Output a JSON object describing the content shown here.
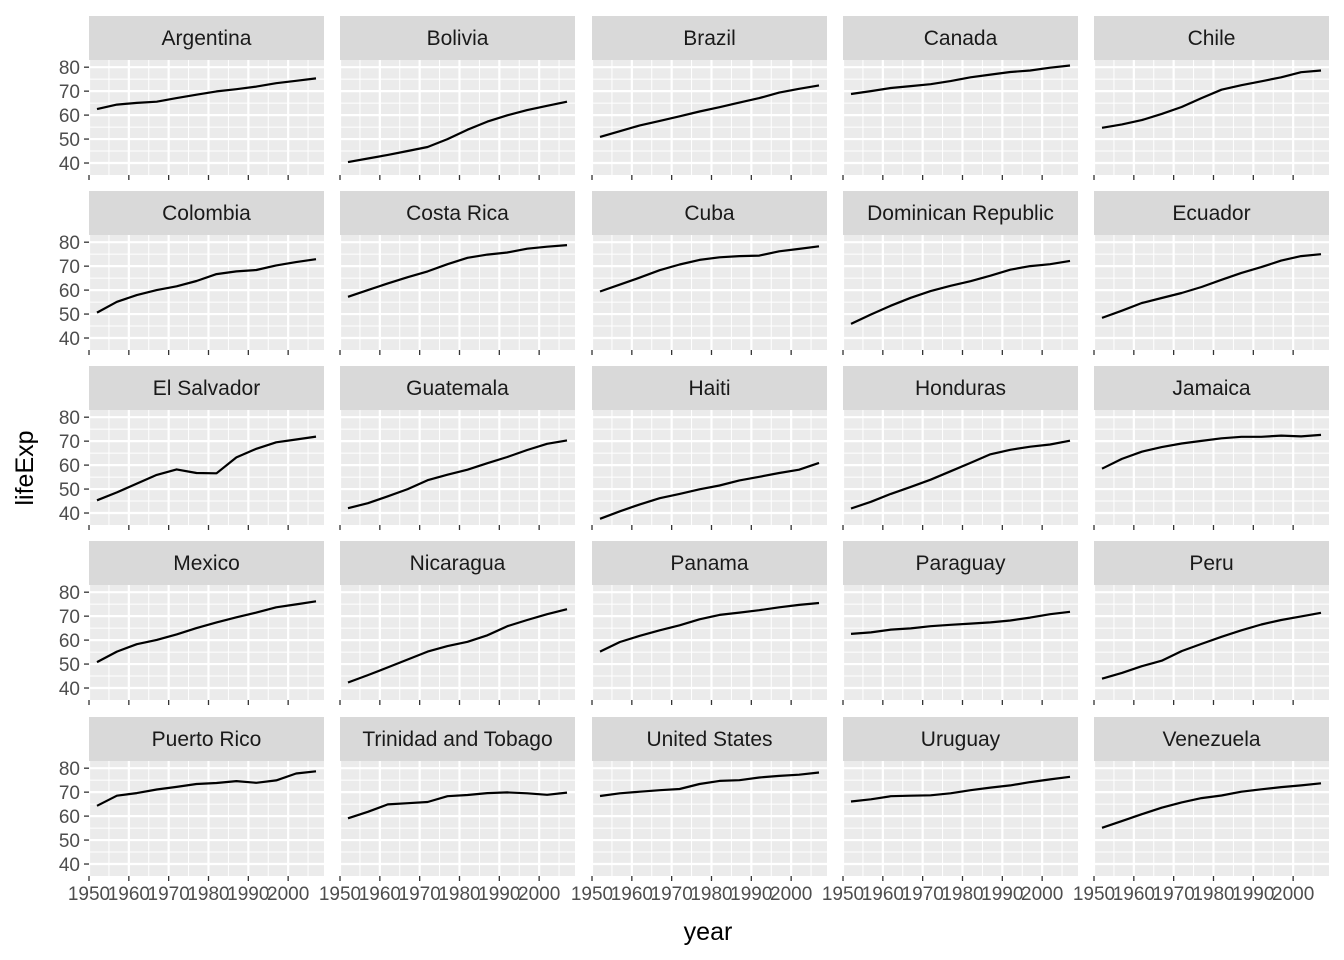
{
  "chart_data": {
    "type": "line",
    "facet_by": "country",
    "xlabel": "year",
    "ylabel": "lifeExp",
    "xlim": [
      1950,
      2009
    ],
    "ylim": [
      35,
      83
    ],
    "x_ticks": [
      1950,
      1960,
      1970,
      1980,
      1990,
      2000
    ],
    "x_tick_labels": [
      "1950",
      "1960",
      "1970",
      "1980",
      "1990",
      "2000"
    ],
    "y_ticks": [
      40,
      50,
      60,
      70,
      80
    ],
    "y_tick_labels": [
      "40",
      "50",
      "60",
      "70",
      "80"
    ],
    "grid": true,
    "colors": {
      "panel_bg": "#ebebeb",
      "grid_major": "#ffffff",
      "strip_bg": "#d9d9d9",
      "line": "#000000",
      "tick": "#333333"
    },
    "years": [
      1952,
      1957,
      1962,
      1967,
      1972,
      1977,
      1982,
      1987,
      1992,
      1997,
      2002,
      2007
    ],
    "series": [
      {
        "name": "Argentina",
        "values": [
          62.5,
          64.4,
          65.1,
          65.6,
          67.1,
          68.5,
          69.9,
          70.8,
          71.9,
          73.3,
          74.3,
          75.3
        ]
      },
      {
        "name": "Bolivia",
        "values": [
          40.4,
          41.9,
          43.4,
          45.0,
          46.7,
          50.0,
          53.9,
          57.3,
          59.9,
          62.1,
          63.9,
          65.6
        ]
      },
      {
        "name": "Brazil",
        "values": [
          50.9,
          53.3,
          55.7,
          57.6,
          59.5,
          61.5,
          63.3,
          65.2,
          67.1,
          69.4,
          71.0,
          72.4
        ]
      },
      {
        "name": "Canada",
        "values": [
          68.8,
          70.0,
          71.3,
          72.1,
          72.9,
          74.2,
          75.8,
          76.9,
          78.0,
          78.6,
          79.8,
          80.7
        ]
      },
      {
        "name": "Chile",
        "values": [
          54.7,
          56.1,
          57.9,
          60.5,
          63.4,
          67.1,
          70.6,
          72.5,
          74.1,
          75.8,
          77.9,
          78.6
        ]
      },
      {
        "name": "Colombia",
        "values": [
          50.6,
          55.1,
          57.9,
          60.0,
          61.6,
          63.8,
          66.7,
          67.8,
          68.4,
          70.3,
          71.7,
          72.9
        ]
      },
      {
        "name": "Costa Rica",
        "values": [
          57.2,
          60.0,
          62.8,
          65.4,
          67.8,
          70.8,
          73.5,
          74.8,
          75.7,
          77.3,
          78.1,
          78.8
        ]
      },
      {
        "name": "Cuba",
        "values": [
          59.4,
          62.3,
          65.2,
          68.3,
          70.7,
          72.6,
          73.7,
          74.2,
          74.4,
          76.2,
          77.2,
          78.3
        ]
      },
      {
        "name": "Dominican Republic",
        "values": [
          45.9,
          49.8,
          53.5,
          56.8,
          59.6,
          61.8,
          63.7,
          66.0,
          68.5,
          70.0,
          70.8,
          72.2
        ]
      },
      {
        "name": "Ecuador",
        "values": [
          48.4,
          51.4,
          54.6,
          56.7,
          58.8,
          61.3,
          64.3,
          67.2,
          69.6,
          72.3,
          74.2,
          75.0
        ]
      },
      {
        "name": "El Salvador",
        "values": [
          45.3,
          48.6,
          52.3,
          55.9,
          58.2,
          56.7,
          56.6,
          63.2,
          66.8,
          69.5,
          70.7,
          71.9
        ]
      },
      {
        "name": "Guatemala",
        "values": [
          42.0,
          44.1,
          47.0,
          50.0,
          53.7,
          56.0,
          58.1,
          60.8,
          63.4,
          66.3,
          68.9,
          70.3
        ]
      },
      {
        "name": "Haiti",
        "values": [
          37.6,
          40.7,
          43.6,
          46.2,
          48.0,
          49.9,
          51.5,
          53.6,
          55.1,
          56.7,
          58.1,
          60.9
        ]
      },
      {
        "name": "Honduras",
        "values": [
          41.9,
          44.7,
          48.0,
          50.9,
          53.9,
          57.4,
          60.9,
          64.5,
          66.4,
          67.7,
          68.6,
          70.2
        ]
      },
      {
        "name": "Jamaica",
        "values": [
          58.5,
          62.6,
          65.6,
          67.5,
          69.0,
          70.1,
          71.2,
          71.8,
          71.8,
          72.3,
          72.0,
          72.6
        ]
      },
      {
        "name": "Mexico",
        "values": [
          50.8,
          55.2,
          58.3,
          60.1,
          62.4,
          65.0,
          67.4,
          69.5,
          71.5,
          73.7,
          74.9,
          76.2
        ]
      },
      {
        "name": "Nicaragua",
        "values": [
          42.3,
          45.4,
          48.6,
          51.9,
          55.2,
          57.5,
          59.3,
          62.0,
          65.8,
          68.4,
          70.8,
          72.9
        ]
      },
      {
        "name": "Panama",
        "values": [
          55.2,
          59.2,
          61.8,
          64.1,
          66.2,
          68.7,
          70.5,
          71.5,
          72.5,
          73.7,
          74.7,
          75.5
        ]
      },
      {
        "name": "Paraguay",
        "values": [
          62.6,
          63.2,
          64.4,
          64.9,
          65.8,
          66.4,
          66.9,
          67.4,
          68.2,
          69.4,
          70.8,
          71.8
        ]
      },
      {
        "name": "Peru",
        "values": [
          43.9,
          46.3,
          49.1,
          51.4,
          55.4,
          58.4,
          61.4,
          64.1,
          66.5,
          68.4,
          69.9,
          71.4
        ]
      },
      {
        "name": "Puerto Rico",
        "values": [
          64.3,
          68.5,
          69.6,
          71.1,
          72.2,
          73.4,
          73.8,
          74.6,
          73.9,
          74.9,
          77.8,
          78.7
        ]
      },
      {
        "name": "Trinidad and Tobago",
        "values": [
          59.1,
          61.8,
          64.9,
          65.4,
          65.9,
          68.3,
          68.8,
          69.6,
          69.9,
          69.5,
          68.9,
          69.8
        ]
      },
      {
        "name": "United States",
        "values": [
          68.4,
          69.5,
          70.2,
          70.8,
          71.3,
          73.4,
          74.7,
          75.0,
          76.1,
          76.8,
          77.3,
          78.2
        ]
      },
      {
        "name": "Uruguay",
        "values": [
          66.1,
          67.0,
          68.3,
          68.5,
          68.7,
          69.5,
          70.8,
          71.9,
          72.8,
          74.2,
          75.3,
          76.4
        ]
      },
      {
        "name": "Venezuela",
        "values": [
          55.1,
          57.9,
          60.8,
          63.5,
          65.7,
          67.5,
          68.6,
          70.2,
          71.2,
          72.1,
          72.8,
          73.7
        ]
      }
    ]
  }
}
